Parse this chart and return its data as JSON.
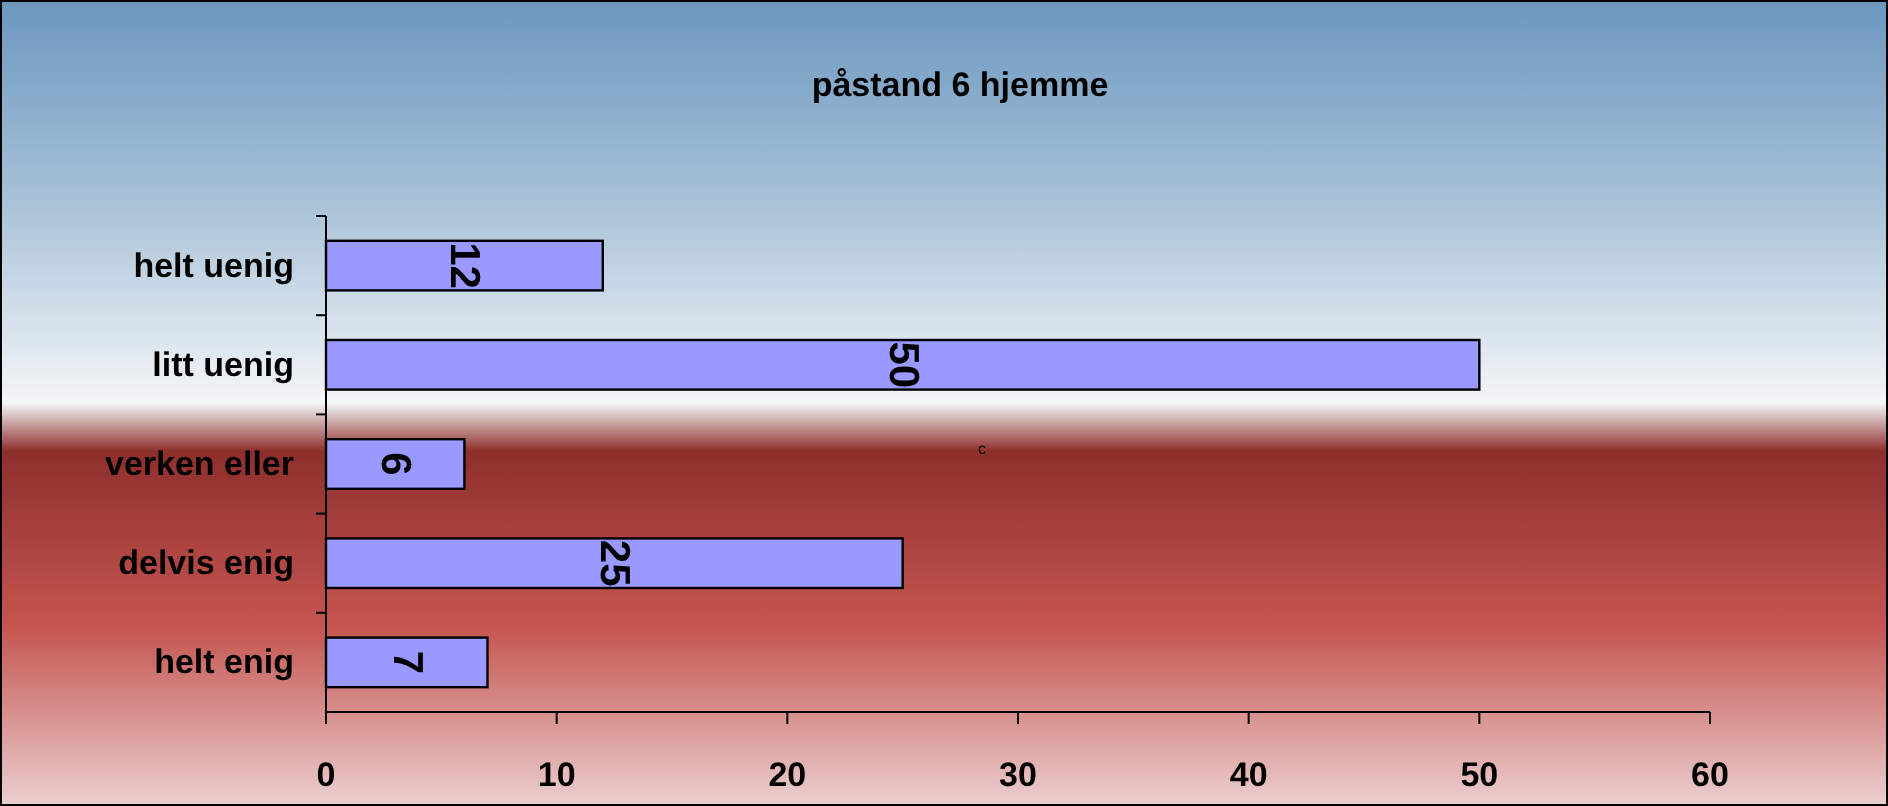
{
  "chart_data": {
    "type": "bar",
    "orientation": "horizontal",
    "title": "påstand 6 hjemme",
    "categories": [
      "helt uenig",
      "litt uenig",
      "verken eller",
      "delvis enig",
      "helt enig"
    ],
    "values": [
      12,
      50,
      6,
      25,
      7
    ],
    "color": "#9999ff",
    "xlim": [
      0,
      60
    ],
    "xticks": [
      0,
      10,
      20,
      30,
      40,
      50,
      60
    ],
    "grid": false,
    "data_labels": true,
    "annotations": [
      "c"
    ]
  }
}
